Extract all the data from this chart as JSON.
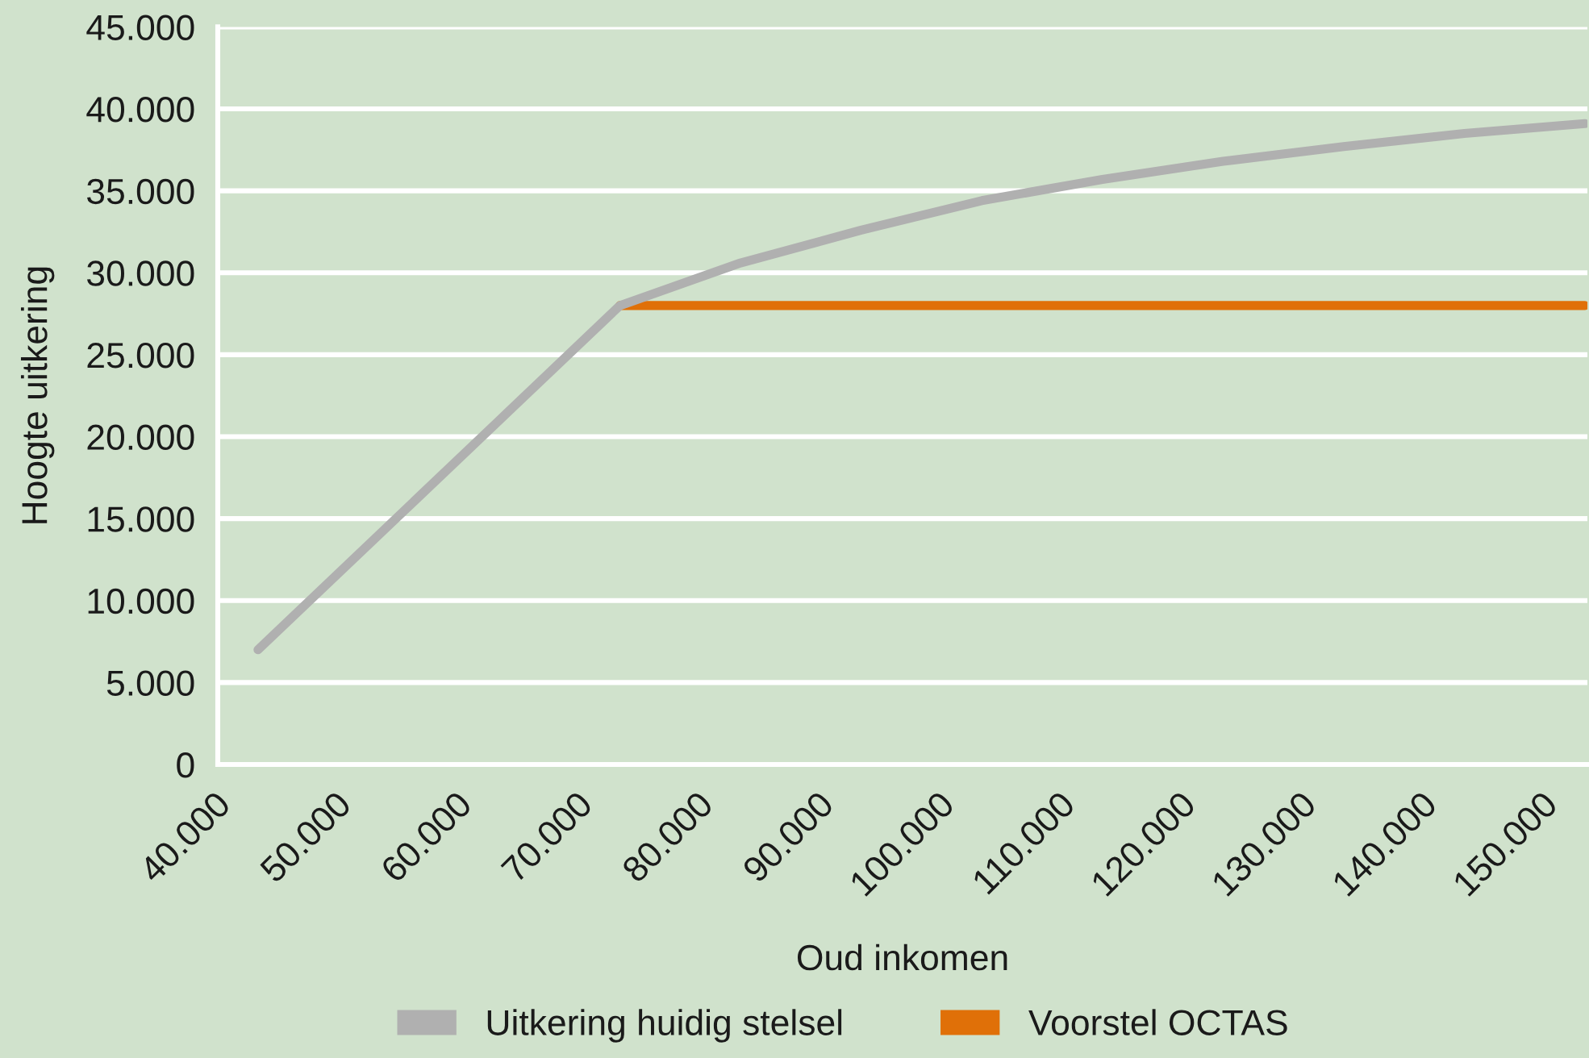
{
  "chart_data": {
    "type": "line",
    "xlabel": "Oud inkomen",
    "ylabel": "Hoogte uitkering",
    "categories": [
      "40.000",
      "50.000",
      "60.000",
      "70.000",
      "80.000",
      "90.000",
      "100.000",
      "110.000",
      "120.000",
      "130.000",
      "140.000",
      "150.000"
    ],
    "series": [
      {
        "name": "Uitkering huidig stelsel",
        "color": "#b0b0b0",
        "values": [
          7000,
          14000,
          21000,
          28000,
          30600,
          32600,
          34400,
          35700,
          36800,
          37700,
          38500,
          39100
        ]
      },
      {
        "name": "Voorstel OCTAS",
        "color": "#e07008",
        "values": [
          null,
          null,
          null,
          28000,
          28000,
          28000,
          28000,
          28000,
          28000,
          28000,
          28000,
          28000
        ]
      }
    ],
    "ylim": [
      0,
      45000
    ],
    "yticks": [
      0,
      {
        "value": 5000,
        "label": "5.000"
      },
      {
        "value": 10000,
        "label": "10.000"
      },
      {
        "value": 15000,
        "label": "15.000"
      },
      {
        "value": 20000,
        "label": "20.000"
      },
      {
        "value": 25000,
        "label": "25.000"
      },
      {
        "value": 30000,
        "label": "30.000"
      },
      {
        "value": 35000,
        "label": "35.000"
      },
      {
        "value": 40000,
        "label": "40.000"
      },
      {
        "value": 45000,
        "label": "45.000"
      }
    ],
    "grid": "y",
    "legend": "bottom",
    "marker": "none",
    "line_style": "solid"
  }
}
